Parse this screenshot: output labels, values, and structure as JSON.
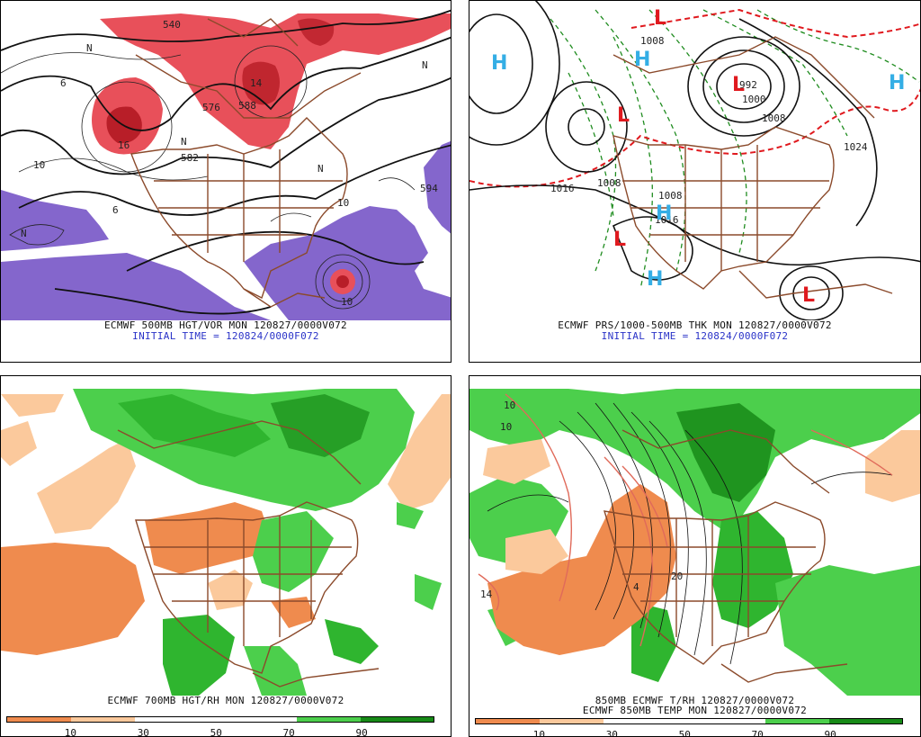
{
  "panels": [
    {
      "id": "p1",
      "caption_line1": "ECMWF 500MB HGT/VOR MON 120827/0000V072",
      "caption_line2": "INITIAL TIME = 120824/0000F072",
      "contour_labels": [
        "540",
        "576",
        "582",
        "588",
        "594",
        "16",
        "14",
        "10",
        "6",
        "N",
        "N",
        "N",
        "N",
        "N",
        "10",
        "6",
        "10"
      ]
    },
    {
      "id": "p2",
      "caption_line1": "ECMWF PRS/1000-500MB THK MON 120827/0000V072",
      "caption_line2": "INITIAL TIME = 120824/0000F072",
      "contour_labels": [
        "1016",
        "1008",
        "1008",
        "1016",
        "1000",
        "1008",
        "1024",
        "992",
        "1008"
      ],
      "highs": [
        "H",
        "H",
        "H",
        "H",
        "H"
      ],
      "lows": [
        "L",
        "L",
        "L",
        "L",
        "L"
      ]
    },
    {
      "id": "p3",
      "caption_line1": "ECMWF 700MB HGT/RH MON 120827/0000V072",
      "scale_ticks": [
        "10",
        "30",
        "50",
        "70",
        "90"
      ]
    },
    {
      "id": "p4",
      "caption_line1": "850MB ECMWF T/RH 120827/0000V072",
      "caption_line2": "ECMWF 850MB TEMP MON 120827/0000V072",
      "contour_labels": [
        "10",
        "10",
        "14",
        "4",
        "20"
      ],
      "scale_ticks": [
        "10",
        "30",
        "50",
        "70",
        "90"
      ]
    }
  ],
  "colors": {
    "vorticity_red": "#e8505a",
    "vorticity_dark": "#b81e28",
    "vorticity_purple": "#8466cc",
    "map_border": "#8b4a2b",
    "rh_dry_dark": "#ef8b4e",
    "rh_dry_light": "#fbc99c",
    "rh_moist_light": "#4ccf4c",
    "rh_moist": "#2fb52f",
    "rh_moist_dark": "#178a17",
    "thickness_red": "#e0191e",
    "thickness_green": "#1f8c1f",
    "high_blue": "#34aee5",
    "low_red": "#e0191e",
    "initial_time_blue": "#2a33c8"
  }
}
